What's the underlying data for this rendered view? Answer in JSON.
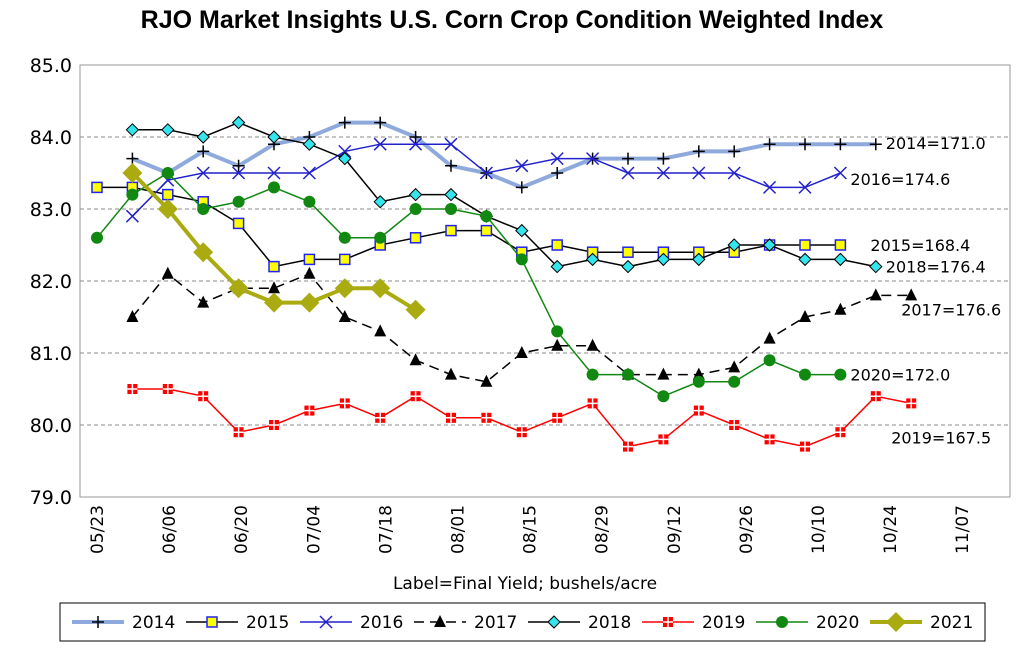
{
  "chart_data": {
    "type": "line",
    "title": "RJO Market Insights U.S. Corn Crop Condition Weighted Index",
    "xlabel": "Label=Final Yield; bushels/acre",
    "ylabel": "",
    "ylim": [
      79.0,
      85.0
    ],
    "yticks": [
      "79.0",
      "80.0",
      "81.0",
      "82.0",
      "83.0",
      "84.0",
      "85.0"
    ],
    "weeks": [
      "05/23",
      "05/30",
      "06/06",
      "06/13",
      "06/20",
      "06/27",
      "07/04",
      "07/11",
      "07/18",
      "07/25",
      "08/01",
      "08/08",
      "08/15",
      "08/22",
      "08/29",
      "09/05",
      "09/12",
      "09/19",
      "09/26",
      "10/03",
      "10/10",
      "10/17",
      "10/24",
      "10/31",
      "11/07"
    ],
    "xtick_labels": [
      "05/23",
      "06/06",
      "06/20",
      "07/04",
      "07/18",
      "08/01",
      "08/15",
      "08/29",
      "09/12",
      "09/26",
      "10/10",
      "10/24",
      "11/07"
    ],
    "grid": true,
    "legend_position": "bottom",
    "series": [
      {
        "name": "2014",
        "start": 1,
        "label": "2014=171.0",
        "color": "#8EA9DB",
        "values": [
          83.7,
          83.5,
          83.8,
          83.6,
          83.9,
          84.0,
          84.2,
          84.2,
          84.0,
          83.6,
          83.5,
          83.3,
          83.5,
          83.7,
          83.7,
          83.7,
          83.8,
          83.8,
          83.9,
          83.9,
          83.9,
          83.9
        ]
      },
      {
        "name": "2015",
        "start": 0,
        "label": "2015=168.4",
        "color": "#000000",
        "values": [
          83.3,
          83.3,
          83.2,
          83.1,
          82.8,
          82.2,
          82.3,
          82.3,
          82.5,
          82.6,
          82.7,
          82.7,
          82.4,
          82.5,
          82.4,
          82.4,
          82.4,
          82.4,
          82.4,
          82.5,
          82.5,
          82.5
        ]
      },
      {
        "name": "2016",
        "start": 1,
        "label": "2016=174.6",
        "color": "#2222CC",
        "values": [
          82.9,
          83.4,
          83.5,
          83.5,
          83.5,
          83.5,
          83.8,
          83.9,
          83.9,
          83.9,
          83.5,
          83.6,
          83.7,
          83.7,
          83.5,
          83.5,
          83.5,
          83.5,
          83.3,
          83.3,
          83.5
        ]
      },
      {
        "name": "2017",
        "start": 1,
        "label": "2017=176.6",
        "color": "#000000",
        "values": [
          81.5,
          82.1,
          81.7,
          81.9,
          81.9,
          82.1,
          81.5,
          81.3,
          80.9,
          80.7,
          80.6,
          81.0,
          81.1,
          81.1,
          80.7,
          80.7,
          80.7,
          80.8,
          81.2,
          81.5,
          81.6,
          81.8,
          81.8
        ]
      },
      {
        "name": "2018",
        "start": 1,
        "label": "2018=176.4",
        "color": "#000000",
        "values": [
          84.1,
          84.1,
          84.0,
          84.2,
          84.0,
          83.9,
          83.7,
          83.1,
          83.2,
          83.2,
          82.9,
          82.7,
          82.2,
          82.3,
          82.2,
          82.3,
          82.3,
          82.5,
          82.5,
          82.3,
          82.3,
          82.2
        ]
      },
      {
        "name": "2019",
        "start": 1,
        "label": "2019=167.5",
        "color": "#FF0000",
        "values": [
          80.5,
          80.5,
          80.4,
          79.9,
          80.0,
          80.2,
          80.3,
          80.1,
          80.4,
          80.1,
          80.1,
          79.9,
          80.1,
          80.3,
          79.7,
          79.8,
          80.2,
          80.0,
          79.8,
          79.7,
          79.9,
          80.4,
          80.3
        ]
      },
      {
        "name": "2020",
        "start": 0,
        "label": "2020=172.0",
        "color": "#118811",
        "values": [
          82.6,
          83.2,
          83.5,
          83.0,
          83.1,
          83.3,
          83.1,
          82.6,
          82.6,
          83.0,
          83.0,
          82.9,
          82.3,
          81.3,
          80.7,
          80.7,
          80.4,
          80.6,
          80.6,
          80.9,
          80.7,
          80.7
        ]
      },
      {
        "name": "2021",
        "start": 1,
        "label": "",
        "color": "#AAAA11",
        "values": [
          83.5,
          83.0,
          82.4,
          81.9,
          81.7,
          81.7,
          81.9,
          81.9,
          81.6
        ]
      }
    ]
  }
}
